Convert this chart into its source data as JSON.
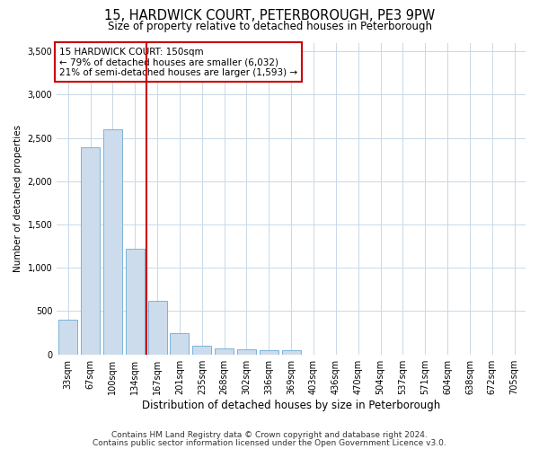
{
  "title": "15, HARDWICK COURT, PETERBOROUGH, PE3 9PW",
  "subtitle": "Size of property relative to detached houses in Peterborough",
  "xlabel": "Distribution of detached houses by size in Peterborough",
  "ylabel": "Number of detached properties",
  "categories": [
    "33sqm",
    "67sqm",
    "100sqm",
    "134sqm",
    "167sqm",
    "201sqm",
    "235sqm",
    "268sqm",
    "302sqm",
    "336sqm",
    "369sqm",
    "403sqm",
    "436sqm",
    "470sqm",
    "504sqm",
    "537sqm",
    "571sqm",
    "604sqm",
    "638sqm",
    "672sqm",
    "705sqm"
  ],
  "values": [
    400,
    2390,
    2600,
    1220,
    620,
    250,
    105,
    70,
    55,
    52,
    45,
    0,
    0,
    0,
    0,
    0,
    0,
    0,
    0,
    0,
    0
  ],
  "bar_color": "#ccdcec",
  "bar_edge_color": "#6aaad4",
  "vline_color": "#cc0000",
  "vline_pos": 3.5,
  "annotation_text": "15 HARDWICK COURT: 150sqm\n← 79% of detached houses are smaller (6,032)\n21% of semi-detached houses are larger (1,593) →",
  "annotation_box_facecolor": "#ffffff",
  "annotation_box_edgecolor": "#cc0000",
  "ylim": [
    0,
    3600
  ],
  "yticks": [
    0,
    500,
    1000,
    1500,
    2000,
    2500,
    3000,
    3500
  ],
  "grid_color": "#c8d8e8",
  "background_color": "#ffffff",
  "footer1": "Contains HM Land Registry data © Crown copyright and database right 2024.",
  "footer2": "Contains public sector information licensed under the Open Government Licence v3.0.",
  "title_fontsize": 10.5,
  "subtitle_fontsize": 8.5,
  "xlabel_fontsize": 8.5,
  "ylabel_fontsize": 7.5,
  "tick_fontsize": 7,
  "annotation_fontsize": 7.5,
  "footer_fontsize": 6.5
}
